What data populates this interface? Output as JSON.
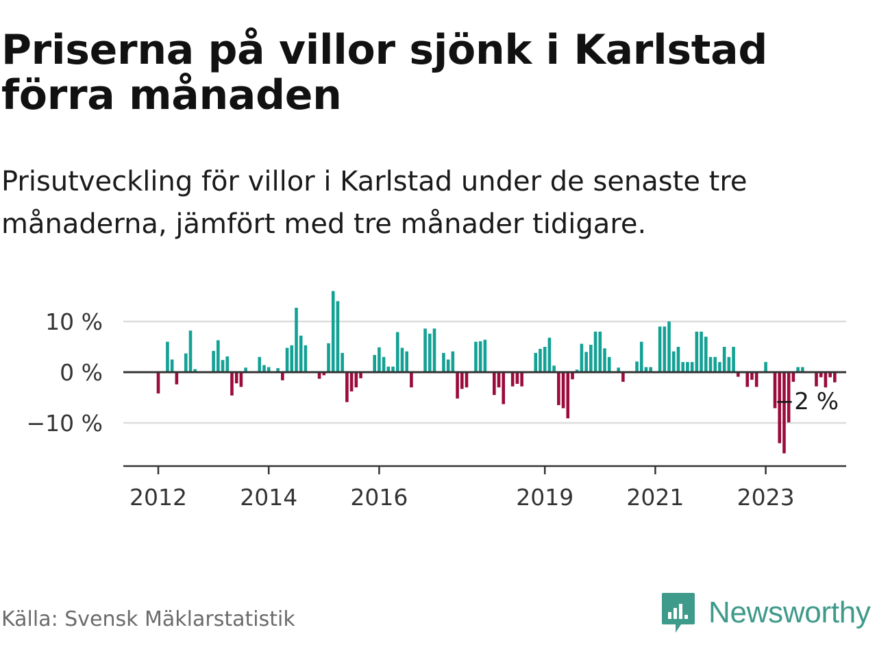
{
  "title": "Priserna på villor sjönk i Karlstad förra månaden",
  "subtitle": "Prisutveckling för villor i Karlstad under de senaste tre månaderna, jämfört med tre månader tidigare.",
  "source": "Källa: Svensk Mäklarstatistik",
  "brand": {
    "name": "Newsworthy",
    "color": "#3e9a8a"
  },
  "colors": {
    "positive": "#14a195",
    "negative": "#9b0b3b",
    "grid": "#dddddd",
    "axis": "#333333"
  },
  "chart_data": {
    "type": "bar",
    "x_start": "2012-01",
    "frequency": "monthly",
    "ylim": [
      -18,
      17
    ],
    "yticks": [
      -10,
      0,
      10
    ],
    "ytick_labels": [
      "−10 %",
      "0 %",
      "10 %"
    ],
    "xtick_labels": [
      {
        "year": 2012,
        "label": "2012"
      },
      {
        "year": 2014,
        "label": "2014"
      },
      {
        "year": 2016,
        "label": "2016"
      },
      {
        "year": 2019,
        "label": "2019"
      },
      {
        "year": 2021,
        "label": "2021"
      },
      {
        "year": 2023,
        "label": "2023"
      }
    ],
    "last_value_label": "−2 %",
    "values": [
      -4.2,
      0.0,
      6.0,
      2.5,
      -2.4,
      0.0,
      3.7,
      8.2,
      0.6,
      0.0,
      0.0,
      0.0,
      4.2,
      6.3,
      2.4,
      3.1,
      -4.6,
      -2.2,
      -2.9,
      0.9,
      0.0,
      0.0,
      3.0,
      1.4,
      1.0,
      0.0,
      0.8,
      -1.6,
      4.8,
      5.3,
      12.7,
      7.2,
      5.3,
      0.0,
      0.0,
      -1.3,
      -0.6,
      5.7,
      16.0,
      14.0,
      3.8,
      -5.9,
      -3.8,
      -3.0,
      -1.2,
      0.0,
      0.0,
      3.4,
      4.9,
      3.0,
      1.1,
      1.1,
      7.9,
      4.8,
      4.1,
      -3.0,
      0.0,
      0.0,
      8.6,
      7.6,
      8.6,
      0.0,
      3.8,
      2.5,
      4.1,
      -5.2,
      -3.3,
      -3.0,
      0.0,
      6.0,
      6.1,
      6.4,
      0.0,
      -4.5,
      -3.0,
      -6.3,
      0.0,
      -2.8,
      -2.3,
      -2.8,
      0.0,
      0.0,
      3.8,
      4.6,
      5.0,
      6.8,
      1.3,
      -6.5,
      -7.1,
      -9.1,
      -1.4,
      0.5,
      5.6,
      4.0,
      5.4,
      8.0,
      8.0,
      4.7,
      3.0,
      0.0,
      0.9,
      -1.9,
      0.0,
      0.0,
      2.1,
      6.0,
      1.0,
      1.0,
      0.0,
      9.0,
      9.0,
      10.0,
      4.1,
      5.0,
      2.0,
      2.0,
      2.0,
      8.0,
      8.0,
      7.0,
      3.0,
      3.0,
      2.0,
      5.0,
      3.0,
      5.0,
      -0.9,
      0.0,
      -2.9,
      -1.5,
      -2.9,
      0.0,
      2.0,
      0.0,
      -7.1,
      -14.0,
      -16.0,
      -9.9,
      -1.9,
      1.0,
      1.0,
      0.0,
      0.0,
      -2.8,
      -1.0,
      -3.0,
      -1.0,
      -2.0
    ]
  }
}
